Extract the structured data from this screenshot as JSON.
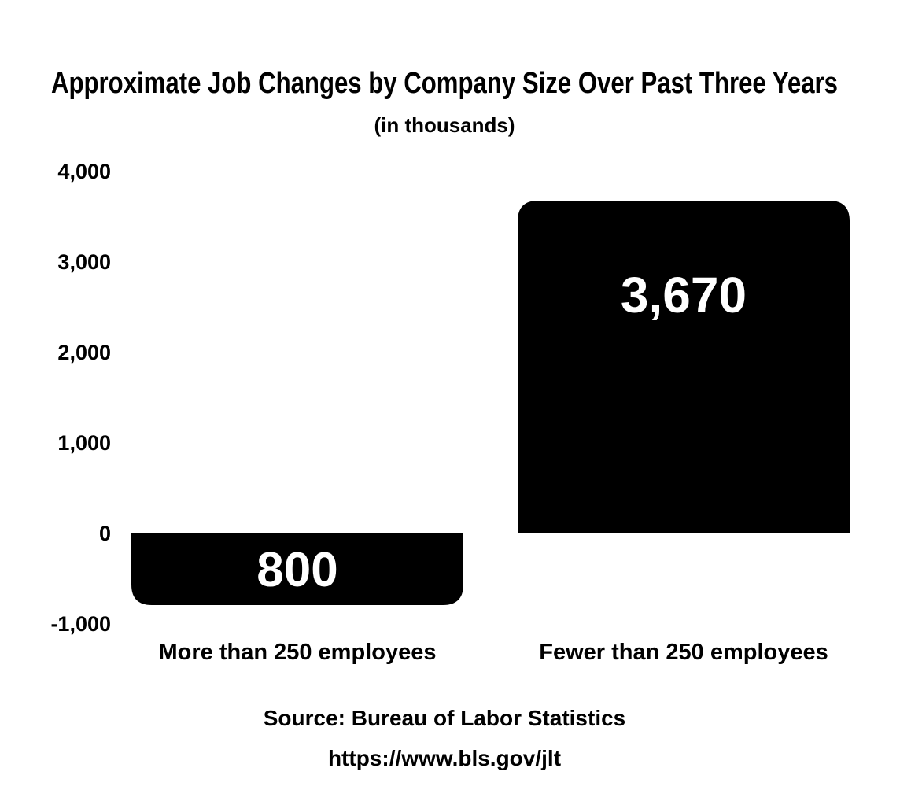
{
  "chart_data": {
    "type": "bar",
    "title": "Approximate Job Changes by Company Size Over Past Three Years",
    "subtitle": "(in thousands)",
    "categories": [
      "More than 250 employees",
      "Fewer than 250 employees"
    ],
    "values": [
      -800,
      3670
    ],
    "data_labels": [
      "800",
      "3,670"
    ],
    "ylim": [
      -1000,
      4000
    ],
    "yticks": [
      4000,
      3000,
      2000,
      1000,
      0,
      -1000
    ],
    "ytick_labels": [
      "4,000",
      "3,000",
      "2,000",
      "1,000",
      "0",
      "-1,000"
    ],
    "xlabel": "",
    "ylabel": "",
    "grid": false,
    "legend": "none",
    "bar_color": "#000000",
    "label_color": "#ffffff"
  },
  "footer": {
    "source": "Source: Bureau of Labor Statistics",
    "url": "https://www.bls.gov/jlt"
  }
}
